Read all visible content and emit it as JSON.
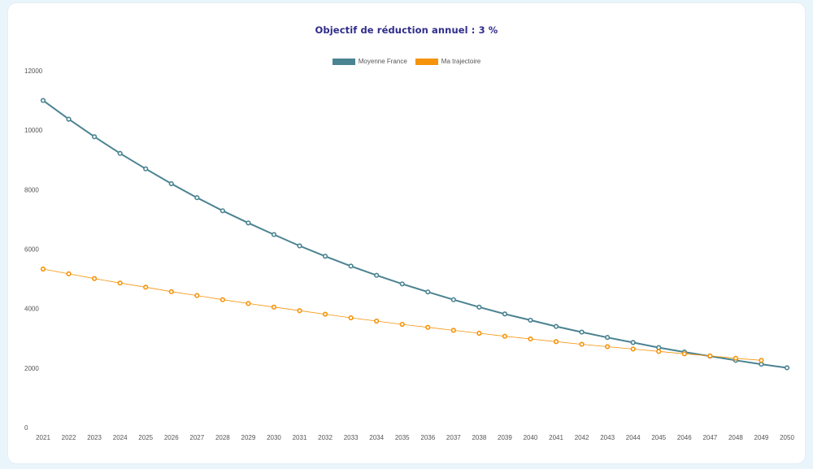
{
  "chart_data": {
    "type": "line",
    "title": "Objectif de réduction annuel : 3 %",
    "xlabel": "",
    "ylabel": "",
    "ylim": [
      0,
      12000
    ],
    "yticks": [
      0,
      2000,
      4000,
      6000,
      8000,
      10000,
      12000
    ],
    "grid": false,
    "legend_position": "top",
    "x": [
      2021,
      2022,
      2023,
      2024,
      2025,
      2026,
      2027,
      2028,
      2029,
      2030,
      2031,
      2032,
      2033,
      2034,
      2035,
      2036,
      2037,
      2038,
      2039,
      2040,
      2041,
      2042,
      2043,
      2044,
      2045,
      2046,
      2047,
      2048,
      2049,
      2050
    ],
    "series": [
      {
        "name": "Moyenne France",
        "color": "#4a8391",
        "values": [
          11000,
          10370,
          9780,
          9220,
          8700,
          8200,
          7730,
          7290,
          6880,
          6490,
          6110,
          5760,
          5430,
          5120,
          4830,
          4560,
          4300,
          4050,
          3820,
          3610,
          3400,
          3210,
          3030,
          2860,
          2690,
          2540,
          2400,
          2260,
          2130,
          2010
        ]
      },
      {
        "name": "Ma trajectoire",
        "color": "#f5930a",
        "values": [
          5330,
          5170,
          5010,
          4860,
          4720,
          4570,
          4440,
          4300,
          4170,
          4050,
          3930,
          3810,
          3690,
          3580,
          3470,
          3370,
          3270,
          3170,
          3070,
          2980,
          2890,
          2800,
          2720,
          2640,
          2560,
          2480,
          2410,
          2330,
          2260,
          null
        ]
      }
    ]
  }
}
